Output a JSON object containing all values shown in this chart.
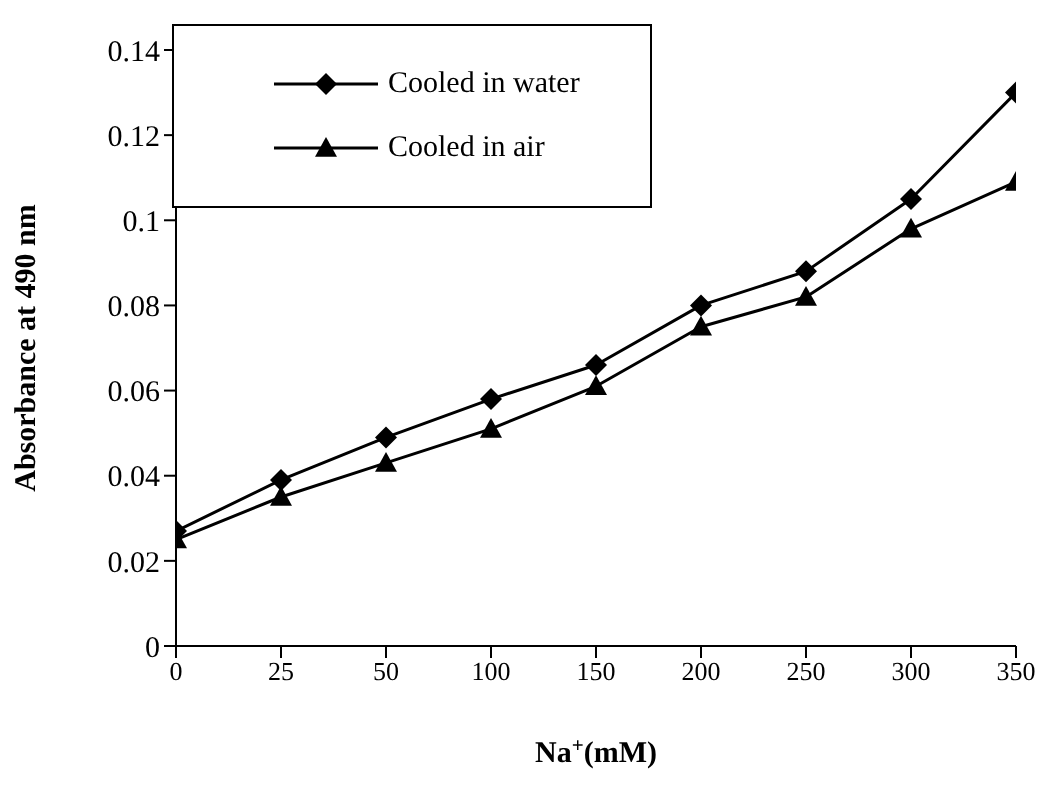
{
  "chart_data": {
    "type": "line",
    "xlabel": "Na$^{+}$(mM)",
    "ylabel": "Absorbance at 490 nm",
    "categories": [
      "0",
      "25",
      "50",
      "100",
      "150",
      "200",
      "250",
      "300",
      "350"
    ],
    "series": [
      {
        "name": "Cooled in water",
        "color": "#000000",
        "marker": "diamond",
        "values": [
          0.027,
          0.039,
          0.049,
          0.058,
          0.066,
          0.08,
          0.088,
          0.105,
          0.13
        ]
      },
      {
        "name": "Cooled in air",
        "color": "#000000",
        "marker": "triangle",
        "values": [
          0.025,
          0.035,
          0.043,
          0.051,
          0.061,
          0.075,
          0.082,
          0.098,
          0.109
        ]
      }
    ],
    "ylim": [
      0,
      0.14
    ],
    "yticks": [
      0,
      0.02,
      0.04,
      0.06,
      0.08,
      0.1,
      0.12,
      0.14
    ],
    "grid": false,
    "legend": "top left",
    "line_style": "solid"
  }
}
